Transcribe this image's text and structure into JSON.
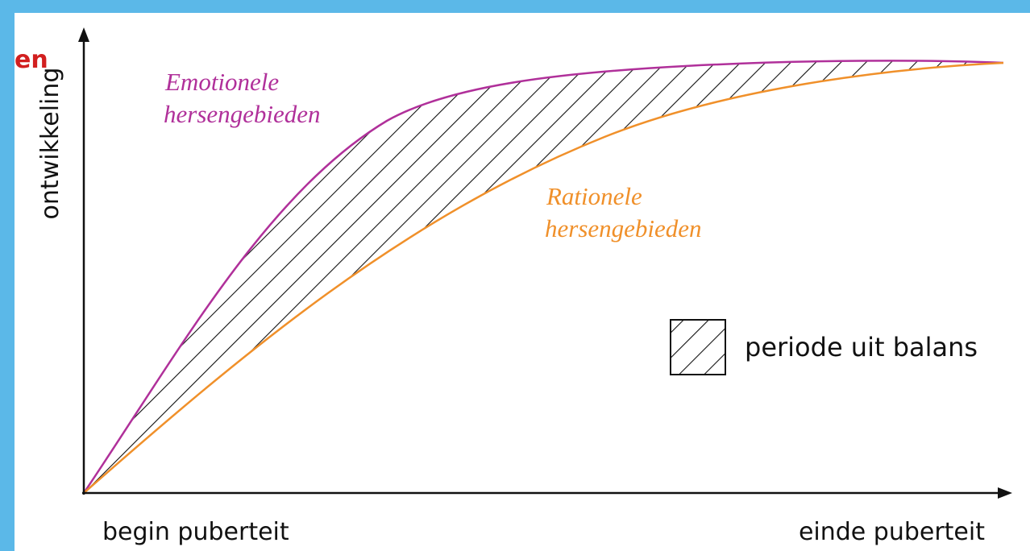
{
  "clipped_heading": "en",
  "y_axis_label": "ontwikkeling",
  "x_axis_start": "begin puberteit",
  "x_axis_end": "einde puberteit",
  "emotional_curve": {
    "line1": "Emotionele",
    "line2": "hersengebieden"
  },
  "rational_curve": {
    "line1": "Rationele",
    "line2": "hersengebieden"
  },
  "legend": {
    "label": "periode uit balans"
  }
}
